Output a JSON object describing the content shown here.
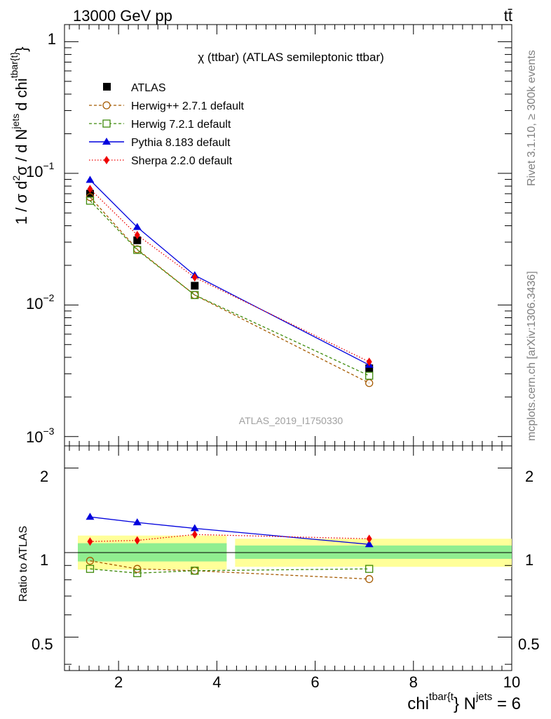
{
  "header": {
    "energy_label": "13000 GeV pp",
    "process_label": "tt̄"
  },
  "side": {
    "rivet_label": "Rivet 3.1.10, ≥ 300k events",
    "site_label": "mcplots.cern.ch [arXiv:1306.3436]"
  },
  "watermark": "ATLAS_2019_I1750330",
  "chart_data": [
    {
      "type": "line",
      "panel": "main",
      "title": "χ (ttbar) (ATLAS semileptonic ttbar)",
      "ylabel": "1 / σ d²σ / d N^jets d chi^tbar{t}",
      "ylabel_parts": {
        "a": "1 / σ d",
        "b": "2",
        "c": "σ / d N",
        "d": "jets",
        "e": "d chi",
        "f": "tbar{t}",
        "g": "}"
      },
      "xlim": [
        0.9,
        10.0
      ],
      "ylim": [
        0.00085,
        1.35
      ],
      "yscale": "log",
      "ytick_labels": {
        "t1": "1",
        "t2": "10",
        "t2e": "−1",
        "t3": "10",
        "t3e": "−2",
        "t4": "10",
        "t4e": "−3"
      },
      "x": [
        1.42,
        2.38,
        3.55,
        7.1
      ],
      "series": [
        {
          "name": "ATLAS",
          "values": [
            0.07,
            0.031,
            0.014,
            0.0033
          ],
          "color": "#000000",
          "style": "data"
        },
        {
          "name": "Herwig++ 2.7.1 default",
          "values": [
            0.066,
            0.0265,
            0.0119,
            0.00255
          ],
          "color": "#a55a00",
          "style": "dashed",
          "marker": "open-circle"
        },
        {
          "name": "Herwig 7.2.1 default",
          "values": [
            0.062,
            0.0262,
            0.0119,
            0.0029
          ],
          "color": "#3e8a0a",
          "style": "dashed",
          "marker": "open-square"
        },
        {
          "name": "Pythia 8.183 default",
          "values": [
            0.089,
            0.039,
            0.0168,
            0.0035
          ],
          "color": "#0000dd",
          "style": "solid",
          "marker": "triangle"
        },
        {
          "name": "Sherpa 2.2.0 default",
          "values": [
            0.076,
            0.034,
            0.0162,
            0.0037
          ],
          "color": "#ee0000",
          "style": "dotted",
          "marker": "diamond"
        }
      ]
    },
    {
      "type": "line",
      "panel": "ratio",
      "ylabel": "Ratio to ATLAS",
      "xlabel": "chi^tbar{t}} N^jets = 6",
      "xlabel_parts": {
        "a": "chi",
        "b": "tbar{t",
        "c": "} N",
        "d": "jets",
        "e": " = 6"
      },
      "xlim": [
        0.9,
        10.0
      ],
      "ylim": [
        0.38,
        2.4
      ],
      "yscale": "log",
      "ytick_labels": [
        "0.5",
        "1",
        "2"
      ],
      "xtick_labels": [
        "2",
        "4",
        "6",
        "8",
        "10"
      ],
      "uncertainty_bands": [
        {
          "x_range": [
            1.0,
            4.2
          ],
          "stat": [
            0.93,
            1.08
          ],
          "total": [
            0.87,
            1.15
          ]
        },
        {
          "x_range": [
            4.2,
            10.0
          ],
          "stat": [
            0.95,
            1.06
          ],
          "total": [
            0.89,
            1.12
          ]
        }
      ],
      "x": [
        1.42,
        2.38,
        3.55,
        7.1
      ],
      "series": [
        {
          "name": "Herwig++ 2.7.1 default",
          "values": [
            0.935,
            0.875,
            0.862,
            0.805
          ],
          "color": "#a55a00"
        },
        {
          "name": "Herwig 7.2.1 default",
          "values": [
            0.875,
            0.845,
            0.862,
            0.875
          ],
          "color": "#3e8a0a"
        },
        {
          "name": "Pythia 8.183 default",
          "values": [
            1.34,
            1.28,
            1.22,
            1.07
          ],
          "color": "#0000dd"
        },
        {
          "name": "Sherpa 2.2.0 default",
          "values": [
            1.095,
            1.105,
            1.16,
            1.12
          ],
          "color": "#ee0000"
        }
      ]
    }
  ]
}
